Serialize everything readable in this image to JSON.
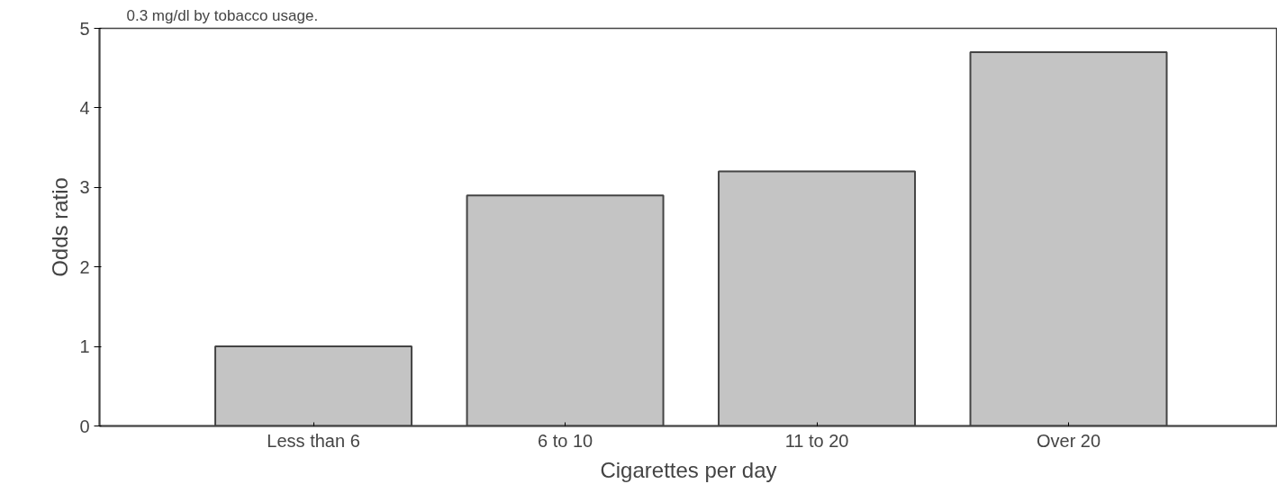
{
  "chart_data": {
    "type": "bar",
    "title": "0.3 mg/dl by tobacco usage.",
    "categories": [
      "Less than 6",
      "6 to 10",
      "11 to 20",
      "Over 20"
    ],
    "values": [
      1.0,
      2.9,
      3.2,
      4.7
    ],
    "color": "#c4c4c4",
    "xlabel": "Cigarettes per day",
    "ylabel": "Odds ratio",
    "ylim": [
      0,
      5
    ],
    "yticks": [
      0,
      1,
      2,
      3,
      4,
      5
    ],
    "grid": false
  }
}
